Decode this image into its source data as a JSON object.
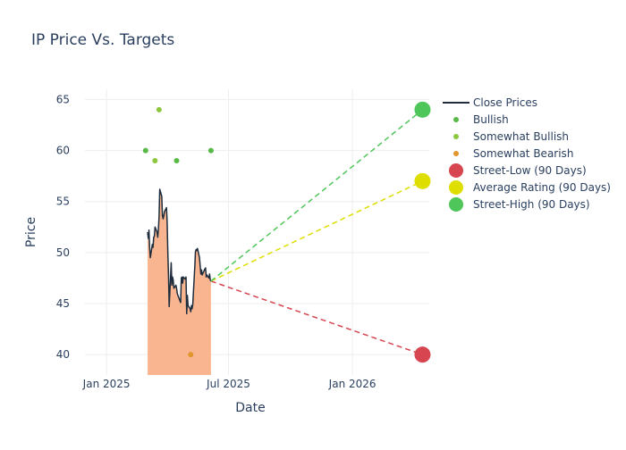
{
  "chart_data": {
    "title": "IP Price Vs. Targets",
    "xlabel": "Date",
    "ylabel": "Price",
    "xlim": [
      "2024-11-30",
      "2026-04-25"
    ],
    "ylim": [
      38,
      66
    ],
    "x_ticks": [
      {
        "date": "2025-01-01",
        "label": "Jan 2025"
      },
      {
        "date": "2025-07-01",
        "label": "Jul 2025"
      },
      {
        "date": "2026-01-01",
        "label": "Jan 2026"
      }
    ],
    "y_ticks": [
      40,
      45,
      50,
      55,
      60,
      65
    ],
    "grid": true,
    "legend_position": "right",
    "colors": {
      "close": "#1f2d3d",
      "fill": "#f9b590",
      "bullish": "#58b947",
      "somewhat_bullish": "#8dc63f",
      "somewhat_bearish": "#e0962c",
      "street_low": "#d64550",
      "average": "#dede00",
      "street_high": "#4fc65a"
    },
    "close_prices": [
      [
        "2025-03-03",
        52.0
      ],
      [
        "2025-03-04",
        51.4
      ],
      [
        "2025-03-05",
        52.2
      ],
      [
        "2025-03-06",
        50.5
      ],
      [
        "2025-03-07",
        49.5
      ],
      [
        "2025-03-10",
        50.8
      ],
      [
        "2025-03-11",
        50.5
      ],
      [
        "2025-03-12",
        51.5
      ],
      [
        "2025-03-13",
        51.6
      ],
      [
        "2025-03-14",
        52.5
      ],
      [
        "2025-03-17",
        52.0
      ],
      [
        "2025-03-18",
        51.5
      ],
      [
        "2025-03-19",
        52.3
      ],
      [
        "2025-03-20",
        53.5
      ],
      [
        "2025-03-21",
        56.2
      ],
      [
        "2025-03-24",
        55.5
      ],
      [
        "2025-03-25",
        53.6
      ],
      [
        "2025-03-26",
        53.3
      ],
      [
        "2025-03-27",
        53.6
      ],
      [
        "2025-03-28",
        54.0
      ],
      [
        "2025-03-31",
        54.4
      ],
      [
        "2025-04-01",
        53.0
      ],
      [
        "2025-04-02",
        50.0
      ],
      [
        "2025-04-03",
        47.8
      ],
      [
        "2025-04-04",
        44.7
      ],
      [
        "2025-04-07",
        49.0
      ],
      [
        "2025-04-08",
        46.8
      ],
      [
        "2025-04-09",
        47.6
      ],
      [
        "2025-04-10",
        47.3
      ],
      [
        "2025-04-11",
        46.5
      ],
      [
        "2025-04-14",
        46.8
      ],
      [
        "2025-04-15",
        46.5
      ],
      [
        "2025-04-16",
        46.0
      ],
      [
        "2025-04-17",
        45.8
      ],
      [
        "2025-04-21",
        45.1
      ],
      [
        "2025-04-22",
        47.5
      ],
      [
        "2025-04-23",
        47.6
      ],
      [
        "2025-04-24",
        47.0
      ],
      [
        "2025-04-25",
        47.6
      ],
      [
        "2025-04-28",
        47.4
      ],
      [
        "2025-04-29",
        47.6
      ],
      [
        "2025-04-30",
        44.0
      ],
      [
        "2025-05-01",
        45.8
      ],
      [
        "2025-05-02",
        44.8
      ],
      [
        "2025-05-05",
        44.5
      ],
      [
        "2025-05-06",
        44.2
      ],
      [
        "2025-05-07",
        44.8
      ],
      [
        "2025-05-08",
        44.5
      ],
      [
        "2025-05-09",
        44.9
      ],
      [
        "2025-05-12",
        48.6
      ],
      [
        "2025-05-13",
        50.1
      ],
      [
        "2025-05-14",
        50.3
      ],
      [
        "2025-05-15",
        50.2
      ],
      [
        "2025-05-16",
        50.4
      ],
      [
        "2025-05-19",
        49.5
      ],
      [
        "2025-05-20",
        48.7
      ],
      [
        "2025-05-21",
        47.9
      ],
      [
        "2025-05-22",
        48.3
      ],
      [
        "2025-05-23",
        47.8
      ],
      [
        "2025-05-27",
        48.4
      ],
      [
        "2025-05-28",
        48.5
      ],
      [
        "2025-05-29",
        47.6
      ],
      [
        "2025-05-30",
        47.8
      ],
      [
        "2025-06-02",
        47.5
      ],
      [
        "2025-06-03",
        47.9
      ],
      [
        "2025-06-04",
        47.3
      ],
      [
        "2025-06-05",
        47.2
      ]
    ],
    "analyst_ratings": [
      {
        "category": "Bullish",
        "date": "2025-02-28",
        "price": 60
      },
      {
        "category": "Somewhat Bullish",
        "date": "2025-03-14",
        "price": 59
      },
      {
        "category": "Somewhat Bullish",
        "date": "2025-03-20",
        "price": 64
      },
      {
        "category": "Bullish",
        "date": "2025-04-15",
        "price": 59
      },
      {
        "category": "Somewhat Bearish",
        "date": "2025-05-06",
        "price": 40
      },
      {
        "category": "Bullish",
        "date": "2025-06-05",
        "price": 60
      }
    ],
    "targets": {
      "start": {
        "date": "2025-06-05",
        "price": 47.2
      },
      "end_date": "2026-04-15",
      "street_low": 40,
      "average": 57,
      "street_high": 64
    }
  },
  "legend": [
    {
      "key": "close",
      "label": "Close Prices",
      "symbol": "line",
      "color": "#1f2d3d"
    },
    {
      "key": "bullish",
      "label": "Bullish",
      "symbol": "dot",
      "color": "#58b947"
    },
    {
      "key": "somewhat_bullish",
      "label": "Somewhat Bullish",
      "symbol": "dot",
      "color": "#8dc63f"
    },
    {
      "key": "somewhat_bearish",
      "label": "Somewhat Bearish",
      "symbol": "dot",
      "color": "#e0962c"
    },
    {
      "key": "street_low",
      "label": "Street-Low (90 Days)",
      "symbol": "big-dot",
      "color": "#d64550"
    },
    {
      "key": "average",
      "label": "Average Rating (90 Days)",
      "symbol": "big-dot",
      "color": "#dede00"
    },
    {
      "key": "street_high",
      "label": "Street-High (90 Days)",
      "symbol": "big-dot",
      "color": "#4fc65a"
    }
  ]
}
